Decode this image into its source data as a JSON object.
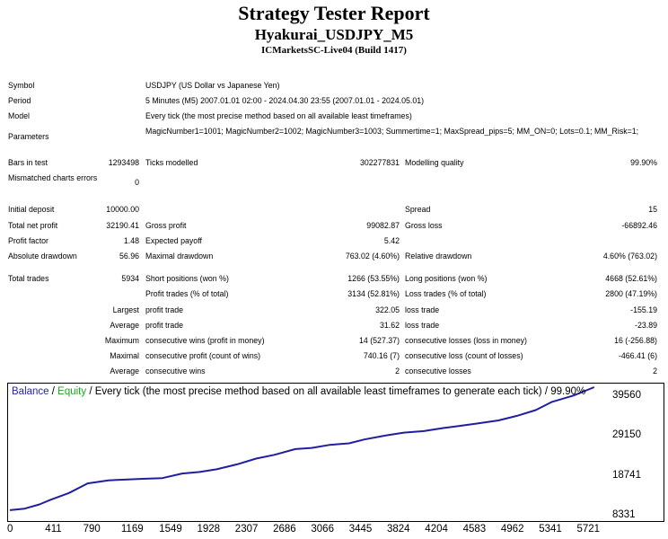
{
  "report": {
    "title": "Strategy Tester Report",
    "expert": "Hyakurai_USDJPY_M5",
    "server": "ICMarketsSC-Live04 (Build 1417)"
  },
  "settings": {
    "symbol_label": "Symbol",
    "symbol": "USDJPY (US Dollar vs Japanese Yen)",
    "period_label": "Period",
    "period": "5 Minutes (M5) 2007.01.01 02:00 - 2024.04.30 23:55 (2007.01.01 - 2024.05.01)",
    "model_label": "Model",
    "model": "Every tick (the most precise method based on all available least timeframes)",
    "parameters_label": "Parameters",
    "parameters": "MagicNumber1=1001; MagicNumber2=1002; MagicNumber3=1003; Summertime=1; MaxSpread_pips=5; MM_ON=0; Lots=0.1; MM_Risk=1;",
    "bars_label": "Bars in test",
    "bars": "1293498",
    "ticks_label": "Ticks modelled",
    "ticks": "302277831",
    "quality_label": "Modelling quality",
    "quality": "99.90%",
    "mismatch_label": "Mismatched charts errors",
    "mismatch": "0"
  },
  "results": {
    "initial_deposit_label": "Initial deposit",
    "initial_deposit": "10000.00",
    "spread_label": "Spread",
    "spread": "15",
    "net_profit_label": "Total net profit",
    "net_profit": "32190.41",
    "gross_profit_label": "Gross profit",
    "gross_profit": "99082.87",
    "gross_loss_label": "Gross loss",
    "gross_loss": "-66892.46",
    "profit_factor_label": "Profit factor",
    "profit_factor": "1.48",
    "expected_payoff_label": "Expected payoff",
    "expected_payoff": "5.42",
    "abs_dd_label": "Absolute drawdown",
    "abs_dd": "56.96",
    "max_dd_label": "Maximal drawdown",
    "max_dd": "763.02 (4.60%)",
    "rel_dd_label": "Relative drawdown",
    "rel_dd": "4.60% (763.02)",
    "total_trades_label": "Total trades",
    "total_trades": "5934",
    "short_label": "Short positions (won %)",
    "short": "1266 (53.55%)",
    "long_label": "Long positions (won %)",
    "long": "4668 (52.61%)",
    "profit_trades_label": "Profit trades (% of total)",
    "profit_trades": "3134 (52.81%)",
    "loss_trades_label": "Loss trades (% of total)",
    "loss_trades": "2800 (47.19%)",
    "largest_label": "Largest",
    "largest_profit_label": "profit trade",
    "largest_profit": "322.05",
    "largest_loss_label": "loss trade",
    "largest_loss": "-155.19",
    "average_label": "Average",
    "average_profit_label": "profit trade",
    "average_profit": "31.62",
    "average_loss_label": "loss trade",
    "average_loss": "-23.89",
    "maximum_label": "Maximum",
    "max_cons_wins_label": "consecutive wins (profit in money)",
    "max_cons_wins": "14 (527.37)",
    "max_cons_losses_label": "consecutive losses (loss in money)",
    "max_cons_losses": "16 (-256.88)",
    "maximal_label": "Maximal",
    "maximal_cons_profit_label": "consecutive profit (count of wins)",
    "maximal_cons_profit": "740.16 (7)",
    "maximal_cons_loss_label": "consecutive loss (count of losses)",
    "maximal_cons_loss": "-466.41 (6)",
    "average2_label": "Average",
    "avg_cons_wins_label": "consecutive wins",
    "avg_cons_wins": "2",
    "avg_cons_losses_label": "consecutive losses",
    "avg_cons_losses": "2"
  },
  "chart_caption": {
    "balance": "Balance",
    "sep1": " / ",
    "equity": "Equity",
    "rest": " / Every tick (the most precise method based on all available least timeframes to generate each tick) / 99.90%"
  },
  "colors": {
    "balance_line": "#1f1fa0",
    "balance_text": "#2424b4",
    "equity_text": "#1ca81c"
  },
  "chart_data": {
    "type": "line",
    "title": "Balance / Equity / Every tick (the most precise method based on all available least timeframes to generate each tick) / 99.90%",
    "x_ticks": [
      "0",
      "411",
      "790",
      "1169",
      "1549",
      "1928",
      "2307",
      "2686",
      "3066",
      "3445",
      "3824",
      "4204",
      "4583",
      "4962",
      "5341",
      "5721"
    ],
    "y_ticks": [
      "39560",
      "29150",
      "18741",
      "8331"
    ],
    "xlim": [
      0,
      6000
    ],
    "ylim": [
      8331,
      42200
    ],
    "grid": false,
    "series": [
      {
        "name": "Balance",
        "x": [
          0,
          150,
          300,
          411,
          600,
          790,
          1000,
          1169,
          1350,
          1549,
          1750,
          1928,
          2100,
          2307,
          2500,
          2686,
          2900,
          3066,
          3250,
          3445,
          3600,
          3824,
          4000,
          4204,
          4400,
          4583,
          4750,
          4962,
          5150,
          5341,
          5500,
          5721,
          5934
        ],
        "y": [
          10000,
          10400,
          11500,
          12700,
          14500,
          17000,
          17800,
          18000,
          18200,
          18400,
          19600,
          20000,
          20700,
          22000,
          23500,
          24500,
          26000,
          26300,
          27100,
          27500,
          28500,
          29600,
          30300,
          30700,
          31500,
          32100,
          32700,
          33500,
          34700,
          36200,
          38300,
          40000,
          42190
        ]
      }
    ]
  }
}
